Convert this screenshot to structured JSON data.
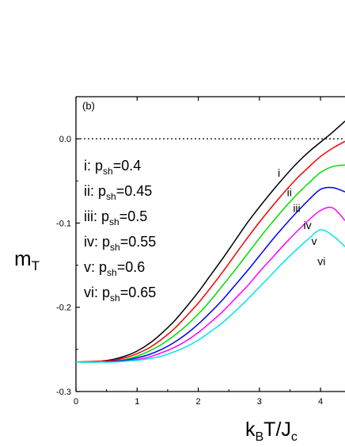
{
  "chart_data": {
    "type": "line",
    "panel_label": "(b)",
    "xlabel": {
      "base": "k",
      "sub1": "B",
      "mid": "T/J",
      "sub2": "c"
    },
    "ylabel": {
      "base": "m",
      "sub": "T"
    },
    "xlim": [
      0,
      4.4
    ],
    "ylim": [
      -0.3,
      0.05
    ],
    "x_ticks": [
      0,
      1,
      2,
      3,
      4
    ],
    "y_ticks": [
      {
        "value": 0.0,
        "label": "0.0"
      },
      {
        "value": -0.1,
        "label": "-0.1"
      },
      {
        "value": -0.2,
        "label": "-0.2"
      },
      {
        "value": -0.3,
        "label": "-0.3"
      }
    ],
    "reference_line": {
      "y": 0.0,
      "style": "dotted"
    },
    "grid": false,
    "legend": [
      {
        "prefix": "i: p",
        "sub": "sh",
        "suffix": "=0.4"
      },
      {
        "prefix": "ii: p",
        "sub": "sh",
        "suffix": "=0.45"
      },
      {
        "prefix": "iii: p",
        "sub": "sh",
        "suffix": "=0.5"
      },
      {
        "prefix": "iv: p",
        "sub": "sh",
        "suffix": "=0.55"
      },
      {
        "prefix": "v: p",
        "sub": "sh",
        "suffix": "=0.6"
      },
      {
        "prefix": "vi: p",
        "sub": "sh",
        "suffix": "=0.65"
      }
    ],
    "x": [
      0.0,
      0.4,
      0.6,
      0.8,
      1.0,
      1.2,
      1.4,
      1.6,
      1.8,
      2.0,
      2.2,
      2.4,
      2.6,
      2.8,
      3.0,
      3.2,
      3.4,
      3.6,
      3.8,
      4.0,
      4.2,
      4.4
    ],
    "series": [
      {
        "name": "i",
        "color": "#000000",
        "label_at": [
          3.3,
          -0.045
        ],
        "values": [
          -0.265,
          -0.264,
          -0.262,
          -0.258,
          -0.252,
          -0.243,
          -0.231,
          -0.217,
          -0.2,
          -0.182,
          -0.162,
          -0.142,
          -0.121,
          -0.1,
          -0.081,
          -0.063,
          -0.046,
          -0.03,
          -0.016,
          -0.004,
          0.008,
          0.021
        ]
      },
      {
        "name": "ii",
        "color": "#ff0000",
        "label_at": [
          3.45,
          -0.068
        ],
        "values": [
          -0.265,
          -0.264,
          -0.263,
          -0.26,
          -0.255,
          -0.248,
          -0.238,
          -0.226,
          -0.211,
          -0.195,
          -0.177,
          -0.158,
          -0.138,
          -0.118,
          -0.099,
          -0.081,
          -0.064,
          -0.048,
          -0.034,
          -0.021,
          -0.011,
          -0.003
        ]
      },
      {
        "name": "iii",
        "color": "#00dd00",
        "label_at": [
          3.55,
          -0.087
        ],
        "values": [
          -0.265,
          -0.265,
          -0.264,
          -0.262,
          -0.258,
          -0.252,
          -0.244,
          -0.234,
          -0.222,
          -0.208,
          -0.192,
          -0.174,
          -0.156,
          -0.137,
          -0.118,
          -0.1,
          -0.083,
          -0.067,
          -0.053,
          -0.04,
          -0.033,
          -0.031
        ]
      },
      {
        "name": "iv",
        "color": "#0000ff",
        "label_at": [
          3.72,
          -0.107
        ],
        "values": [
          -0.265,
          -0.265,
          -0.264,
          -0.263,
          -0.26,
          -0.256,
          -0.25,
          -0.242,
          -0.232,
          -0.22,
          -0.206,
          -0.191,
          -0.174,
          -0.157,
          -0.139,
          -0.121,
          -0.104,
          -0.088,
          -0.073,
          -0.06,
          -0.058,
          -0.063
        ]
      },
      {
        "name": "v",
        "color": "#ff00ff",
        "label_at": [
          3.85,
          -0.126
        ],
        "values": [
          -0.265,
          -0.265,
          -0.265,
          -0.264,
          -0.262,
          -0.259,
          -0.254,
          -0.248,
          -0.24,
          -0.23,
          -0.218,
          -0.205,
          -0.19,
          -0.175,
          -0.158,
          -0.142,
          -0.126,
          -0.111,
          -0.097,
          -0.085,
          -0.082,
          -0.097
        ]
      },
      {
        "name": "vi",
        "color": "#00e6e6",
        "label_at": [
          3.95,
          -0.15
        ],
        "values": [
          -0.265,
          -0.265,
          -0.265,
          -0.264,
          -0.263,
          -0.261,
          -0.258,
          -0.253,
          -0.247,
          -0.239,
          -0.229,
          -0.218,
          -0.205,
          -0.191,
          -0.176,
          -0.161,
          -0.146,
          -0.132,
          -0.119,
          -0.108,
          -0.115,
          -0.128
        ]
      }
    ]
  }
}
